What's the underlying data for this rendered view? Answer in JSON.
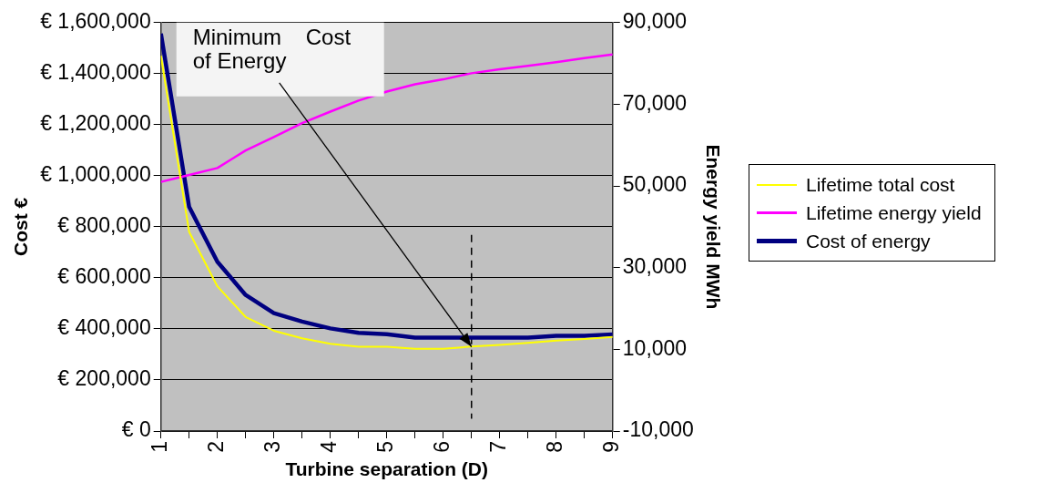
{
  "chart_data": {
    "type": "line",
    "xlabel": "Turbine separation (D)",
    "ylabel": "Cost €",
    "y2label": "Energy yield MWh",
    "x": [
      1,
      1.5,
      2,
      2.5,
      3,
      3.5,
      4,
      4.5,
      5,
      5.5,
      6,
      6.5,
      7,
      7.5,
      8,
      8.5,
      9
    ],
    "xlim": [
      1,
      9
    ],
    "xticks": [
      1,
      {
        "value": 1.5,
        "label": null
      },
      2,
      {
        "value": 2.5,
        "label": null
      },
      3,
      {
        "value": 3.5,
        "label": null
      },
      4,
      {
        "value": 4.5,
        "label": null
      },
      5,
      {
        "value": 5.5,
        "label": null
      },
      6,
      {
        "value": 6.5,
        "label": null
      },
      7,
      {
        "value": 7.5,
        "label": null
      },
      8,
      {
        "value": 8.5,
        "label": null
      },
      9
    ],
    "ylim": [
      0,
      1600000
    ],
    "yticks": [
      {
        "value": 0,
        "label": "€ 0"
      },
      {
        "value": 200000,
        "label": "€ 200,000"
      },
      {
        "value": 400000,
        "label": "€ 400,000"
      },
      {
        "value": 600000,
        "label": "€ 600,000"
      },
      {
        "value": 800000,
        "label": "€ 800,000"
      },
      {
        "value": 1000000,
        "label": "€ 1,000,000"
      },
      {
        "value": 1200000,
        "label": "€ 1,200,000"
      },
      {
        "value": 1400000,
        "label": "€ 1,400,000"
      },
      {
        "value": 1600000,
        "label": "€ 1,600,000"
      }
    ],
    "y2lim": [
      -10000,
      90000
    ],
    "y2ticks": [
      {
        "value": -10000,
        "label": "-10,000"
      },
      {
        "value": 10000,
        "label": "10,000"
      },
      {
        "value": 30000,
        "label": "30,000"
      },
      {
        "value": 50000,
        "label": "50,000"
      },
      {
        "value": 70000,
        "label": "70,000"
      },
      {
        "value": 90000,
        "label": "90,000"
      }
    ],
    "series": [
      {
        "name": "Lifetime total cost",
        "color": "#ffff00",
        "values": [
          1470000,
          780000,
          567000,
          447000,
          393000,
          363000,
          342000,
          330000,
          330000,
          322000,
          322000,
          331000,
          337000,
          345000,
          354000,
          361000,
          369000
        ]
      },
      {
        "name": "Lifetime energy yield",
        "color": "#ff00ff",
        "axis": "y2",
        "values": [
          51000,
          52700,
          54400,
          58700,
          62000,
          65400,
          68200,
          70900,
          73100,
          74900,
          76100,
          77600,
          78600,
          79400,
          80300,
          81300,
          82200
        ]
      },
      {
        "name": "Cost of energy",
        "color": "#000080",
        "values": [
          1557000,
          878000,
          663000,
          533000,
          462000,
          429000,
          402000,
          385000,
          379000,
          366000,
          366000,
          366000,
          366000,
          366000,
          373000,
          373000,
          378000
        ]
      }
    ],
    "ref_lines": [
      {
        "axis": "x",
        "value": 6.5,
        "line_style": "dashed",
        "color": "#000000"
      }
    ],
    "annotations": [
      {
        "text": "Minimum    Cost of Energy",
        "x": 6.5,
        "y": 330000
      }
    ],
    "grid": "y",
    "legend": "right",
    "marker": "none",
    "line_style": "solid"
  }
}
